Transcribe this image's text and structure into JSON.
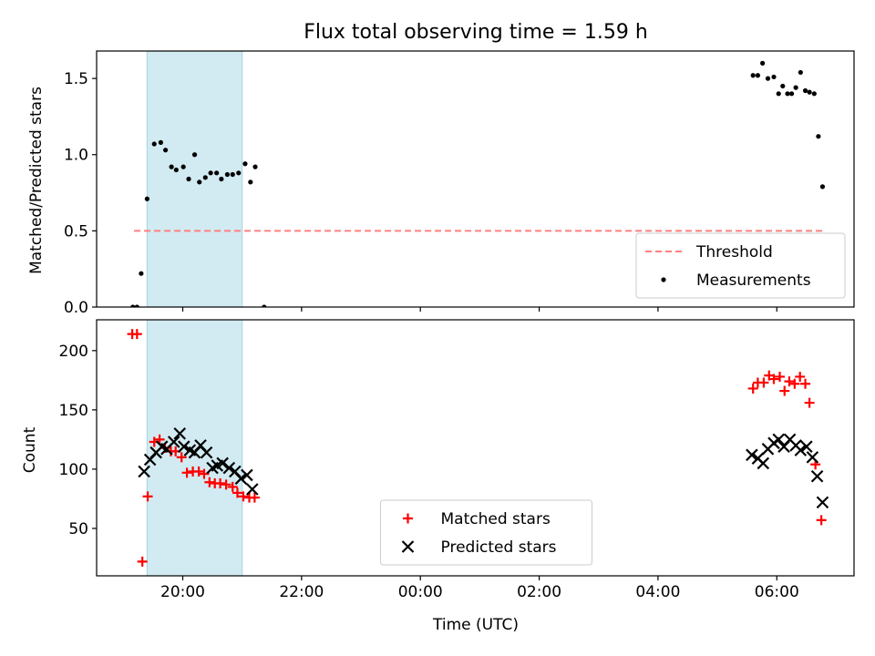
{
  "figure": {
    "title": "Flux total observing time = 1.59 h"
  },
  "chart_data": [
    {
      "type": "scatter",
      "ylabel": "Matched/Predicted stars",
      "xlabel": "",
      "x_axis": "Time (UTC), hours since 00:00",
      "xlim": [
        -5.45,
        7.3
      ],
      "ylim": [
        0,
        1.68
      ],
      "x_ticks": [
        -4,
        -2,
        0,
        2,
        4,
        6
      ],
      "x_tick_labels_visible": false,
      "y_ticks": [
        0.0,
        0.5,
        1.0,
        1.5
      ],
      "y_tick_labels": [
        "0.0",
        "0.5",
        "1.0",
        "1.5"
      ],
      "shaded_span": {
        "x0": -4.6,
        "x1": -3.0,
        "color": "#add8e6"
      },
      "threshold": {
        "name": "Threshold",
        "y": 0.5,
        "x0": -4.82,
        "x1": 6.77,
        "color": "#ff8080",
        "style": "dashed"
      },
      "legend": {
        "location": "lower right",
        "entries": [
          "Threshold",
          "Measurements"
        ]
      },
      "series": [
        {
          "name": "Measurements",
          "color": "#000000",
          "marker": "dot",
          "points": [
            [
              -4.84,
              0.0
            ],
            [
              -4.77,
              0.0
            ],
            [
              -4.7,
              0.22
            ],
            [
              -4.6,
              0.71
            ],
            [
              -4.48,
              1.07
            ],
            [
              -4.37,
              1.08
            ],
            [
              -4.29,
              1.03
            ],
            [
              -4.19,
              0.92
            ],
            [
              -4.11,
              0.9
            ],
            [
              -3.99,
              0.92
            ],
            [
              -3.9,
              0.84
            ],
            [
              -3.8,
              1.0
            ],
            [
              -3.72,
              0.82
            ],
            [
              -3.62,
              0.85
            ],
            [
              -3.53,
              0.88
            ],
            [
              -3.43,
              0.88
            ],
            [
              -3.35,
              0.84
            ],
            [
              -3.25,
              0.87
            ],
            [
              -3.16,
              0.87
            ],
            [
              -3.06,
              0.88
            ],
            [
              -2.95,
              0.94
            ],
            [
              -2.86,
              0.82
            ],
            [
              -2.78,
              0.92
            ],
            [
              -2.63,
              0.0
            ],
            [
              5.6,
              1.52
            ],
            [
              5.68,
              1.52
            ],
            [
              5.76,
              1.6
            ],
            [
              5.85,
              1.5
            ],
            [
              5.95,
              1.51
            ],
            [
              6.03,
              1.4
            ],
            [
              6.1,
              1.45
            ],
            [
              6.18,
              1.4
            ],
            [
              6.25,
              1.4
            ],
            [
              6.32,
              1.44
            ],
            [
              6.4,
              1.54
            ],
            [
              6.48,
              1.42
            ],
            [
              6.55,
              1.41
            ],
            [
              6.63,
              1.4
            ],
            [
              6.7,
              1.12
            ],
            [
              6.77,
              0.79
            ]
          ]
        }
      ]
    },
    {
      "type": "scatter",
      "ylabel": "Count",
      "xlabel": "Time (UTC)",
      "x_axis": "Time (UTC), hours since 00:00",
      "xlim": [
        -5.45,
        7.3
      ],
      "ylim": [
        10,
        226
      ],
      "x_ticks": [
        -4,
        -2,
        0,
        2,
        4,
        6
      ],
      "x_tick_labels": [
        "20:00",
        "22:00",
        "00:00",
        "02:00",
        "04:00",
        "06:00"
      ],
      "y_ticks": [
        50,
        100,
        150,
        200
      ],
      "y_tick_labels": [
        "50",
        "100",
        "150",
        "200"
      ],
      "shaded_span": {
        "x0": -4.6,
        "x1": -3.0,
        "color": "#add8e6"
      },
      "legend": {
        "location": "lower center",
        "entries": [
          "Matched stars",
          "Predicted stars"
        ]
      },
      "series": [
        {
          "name": "Matched stars",
          "color": "#ff0000",
          "marker": "plus",
          "points": [
            [
              -4.85,
              214
            ],
            [
              -4.77,
              214
            ],
            [
              -4.68,
              22
            ],
            [
              -4.59,
              77
            ],
            [
              -4.48,
              123
            ],
            [
              -4.39,
              125
            ],
            [
              -4.3,
              118
            ],
            [
              -4.2,
              115
            ],
            [
              -4.12,
              115
            ],
            [
              -4.02,
              110
            ],
            [
              -3.93,
              97
            ],
            [
              -3.83,
              98
            ],
            [
              -3.73,
              98
            ],
            [
              -3.64,
              96
            ],
            [
              -3.55,
              89
            ],
            [
              -3.46,
              88
            ],
            [
              -3.37,
              88
            ],
            [
              -3.27,
              87
            ],
            [
              -3.16,
              85
            ],
            [
              -3.08,
              80
            ],
            [
              -2.98,
              77
            ],
            [
              -2.88,
              76
            ],
            [
              -2.79,
              76
            ],
            [
              5.6,
              168
            ],
            [
              5.68,
              173
            ],
            [
              5.78,
              173
            ],
            [
              5.87,
              179
            ],
            [
              5.95,
              176
            ],
            [
              6.05,
              178
            ],
            [
              6.13,
              166
            ],
            [
              6.21,
              174
            ],
            [
              6.3,
              172
            ],
            [
              6.39,
              178
            ],
            [
              6.48,
              172
            ],
            [
              6.55,
              156
            ],
            [
              6.65,
              104
            ],
            [
              6.75,
              57
            ]
          ]
        },
        {
          "name": "Predicted stars",
          "color": "#000000",
          "marker": "x",
          "points": [
            [
              -4.65,
              98
            ],
            [
              -4.55,
              108
            ],
            [
              -4.45,
              114
            ],
            [
              -4.35,
              119
            ],
            [
              -4.27,
              117
            ],
            [
              -4.15,
              123
            ],
            [
              -4.05,
              130
            ],
            [
              -3.98,
              119
            ],
            [
              -3.88,
              116
            ],
            [
              -3.8,
              114
            ],
            [
              -3.7,
              120
            ],
            [
              -3.6,
              114
            ],
            [
              -3.5,
              101
            ],
            [
              -3.42,
              103
            ],
            [
              -3.33,
              105
            ],
            [
              -3.22,
              101
            ],
            [
              -3.12,
              98
            ],
            [
              -3.02,
              92
            ],
            [
              -2.92,
              95
            ],
            [
              -2.83,
              83
            ],
            [
              5.58,
              112
            ],
            [
              5.68,
              109
            ],
            [
              5.77,
              105
            ],
            [
              5.85,
              117
            ],
            [
              5.95,
              122
            ],
            [
              6.03,
              125
            ],
            [
              6.12,
              119
            ],
            [
              6.22,
              125
            ],
            [
              6.32,
              120
            ],
            [
              6.4,
              116
            ],
            [
              6.5,
              119
            ],
            [
              6.6,
              110
            ],
            [
              6.68,
              94
            ],
            [
              6.77,
              72
            ]
          ]
        }
      ]
    }
  ]
}
